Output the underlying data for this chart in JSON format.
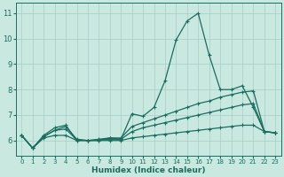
{
  "xlabel": "Humidex (Indice chaleur)",
  "xlim": [
    -0.5,
    23.5
  ],
  "ylim": [
    5.4,
    11.4
  ],
  "yticks": [
    6,
    7,
    8,
    9,
    10,
    11
  ],
  "xticks": [
    0,
    1,
    2,
    3,
    4,
    5,
    6,
    7,
    8,
    9,
    10,
    11,
    12,
    13,
    14,
    15,
    16,
    17,
    18,
    19,
    20,
    21,
    22,
    23
  ],
  "bg_color": "#c8e8e0",
  "grid_color": "#a8ccc4",
  "line_color": "#1a6e60",
  "line1_y": [
    6.2,
    5.7,
    6.2,
    6.5,
    6.6,
    6.0,
    6.0,
    6.0,
    6.1,
    6.05,
    7.05,
    6.95,
    7.3,
    8.35,
    9.95,
    10.7,
    11.0,
    9.35,
    8.0,
    8.0,
    8.15,
    7.3,
    6.35,
    6.3
  ],
  "line2_y": [
    6.2,
    5.7,
    6.15,
    6.4,
    6.55,
    6.05,
    6.0,
    6.05,
    6.1,
    6.1,
    6.55,
    6.7,
    6.85,
    7.0,
    7.15,
    7.3,
    7.45,
    7.55,
    7.7,
    7.8,
    7.9,
    7.95,
    6.35,
    6.3
  ],
  "line3_y": [
    6.2,
    5.7,
    6.15,
    6.4,
    6.45,
    6.02,
    6.0,
    6.02,
    6.05,
    6.05,
    6.35,
    6.5,
    6.6,
    6.7,
    6.8,
    6.9,
    7.0,
    7.1,
    7.2,
    7.3,
    7.4,
    7.45,
    6.35,
    6.3
  ],
  "line4_y": [
    6.2,
    5.7,
    6.1,
    6.2,
    6.2,
    6.0,
    6.0,
    6.0,
    6.0,
    6.0,
    6.1,
    6.15,
    6.2,
    6.25,
    6.3,
    6.35,
    6.4,
    6.45,
    6.5,
    6.55,
    6.6,
    6.6,
    6.35,
    6.3
  ]
}
